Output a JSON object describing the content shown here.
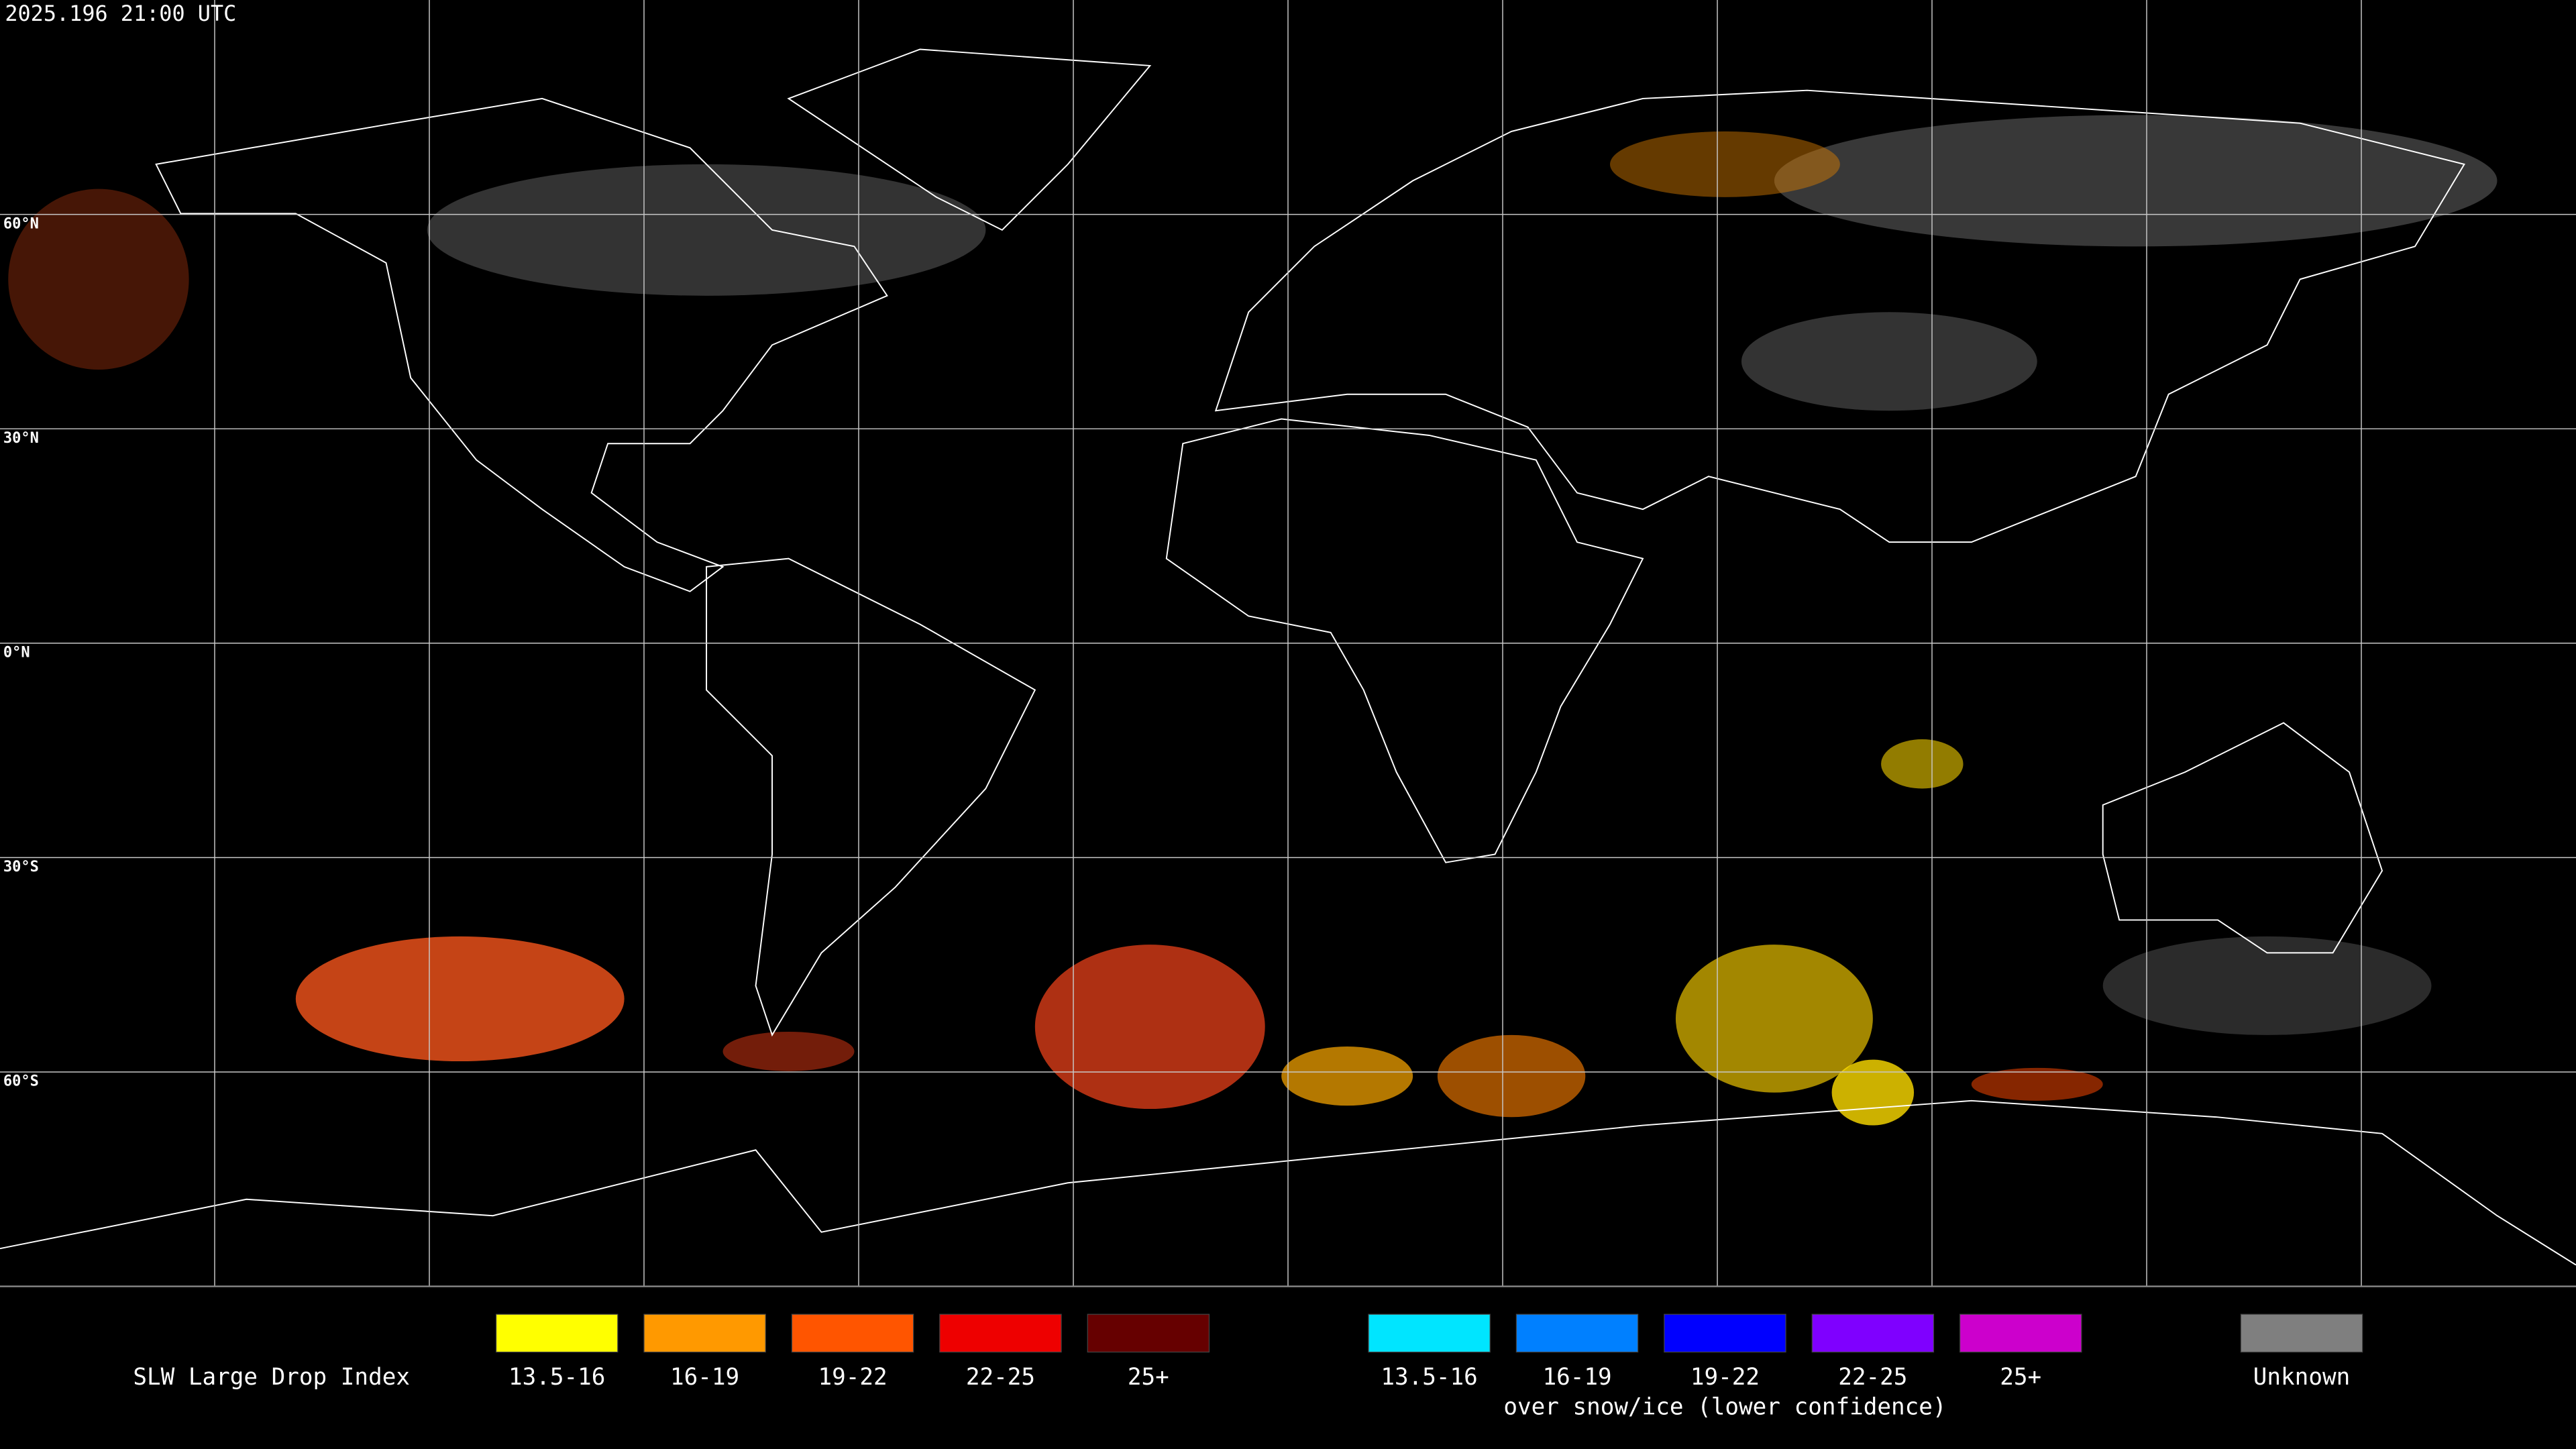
{
  "header": {
    "timestamp": "2025.196 21:00 UTC"
  },
  "lat_labels": [
    "60°N",
    "30°N",
    "0°N",
    "30°S",
    "60°S"
  ],
  "legend": {
    "title": "SLW Large Drop Index",
    "groups": [
      {
        "items": [
          {
            "label": "13.5-16",
            "color": "#ffff00"
          },
          {
            "label": "16-19",
            "color": "#ff9900"
          },
          {
            "label": "19-22",
            "color": "#ff5500"
          },
          {
            "label": "22-25",
            "color": "#ee0000"
          },
          {
            "label": "25+",
            "color": "#660000"
          }
        ]
      },
      {
        "items": [
          {
            "label": "13.5-16",
            "color": "#00e5ff"
          },
          {
            "label": "16-19",
            "color": "#0080ff"
          },
          {
            "label": "19-22",
            "color": "#0000ff"
          },
          {
            "label": "22-25",
            "color": "#7f00ff"
          },
          {
            "label": "25+",
            "color": "#cc00cc"
          }
        ],
        "note": "over snow/ice (lower confidence)"
      },
      {
        "items": [
          {
            "label": "Unknown",
            "color": "#7f7f7f"
          }
        ]
      }
    ]
  }
}
